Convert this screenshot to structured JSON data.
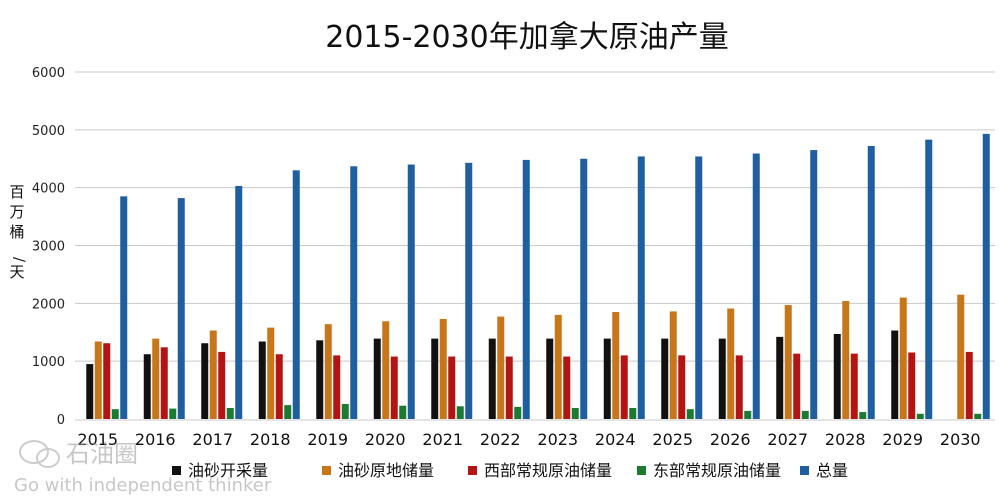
{
  "chart_data": {
    "type": "bar",
    "title": "2015-2030年加拿大原油产量",
    "ylabel": "百万桶/天",
    "ylim": [
      0,
      6000
    ],
    "yticks": [
      0,
      1000,
      2000,
      3000,
      4000,
      5000,
      6000
    ],
    "grid": true,
    "legend_position": "bottom",
    "categories": [
      "2015",
      "2016",
      "2017",
      "2018",
      "2019",
      "2020",
      "2021",
      "2022",
      "2023",
      "2024",
      "2025",
      "2026",
      "2027",
      "2028",
      "2029",
      "2030"
    ],
    "series": [
      {
        "name": "油砂开采量",
        "color": "#111111",
        "values": [
          950,
          1120,
          1310,
          1340,
          1360,
          1390,
          1390,
          1390,
          1390,
          1390,
          1390,
          1390,
          1420,
          1470,
          1530,
          0
        ]
      },
      {
        "name": "油砂原地储量",
        "color": "#c8761a",
        "values": [
          1340,
          1390,
          1530,
          1580,
          1640,
          1690,
          1730,
          1770,
          1800,
          1850,
          1860,
          1910,
          1970,
          2040,
          2100,
          2150
        ]
      },
      {
        "name": "西部常规原油储量",
        "color": "#b31414",
        "values": [
          1310,
          1240,
          1160,
          1120,
          1100,
          1080,
          1080,
          1080,
          1080,
          1100,
          1100,
          1100,
          1130,
          1130,
          1150,
          1160
        ]
      },
      {
        "name": "东部常规原油储量",
        "color": "#1d7a33",
        "values": [
          170,
          180,
          190,
          240,
          260,
          230,
          220,
          210,
          190,
          190,
          170,
          140,
          140,
          120,
          90,
          90
        ]
      },
      {
        "name": "总量",
        "color": "#1f5fa0",
        "values": [
          3850,
          3820,
          4030,
          4300,
          4370,
          4400,
          4430,
          4480,
          4500,
          4540,
          4540,
          4590,
          4650,
          4720,
          4830,
          4930
        ]
      }
    ]
  },
  "watermark": {
    "logo_text": "石油圈",
    "tagline": "Go with independent thinker"
  }
}
